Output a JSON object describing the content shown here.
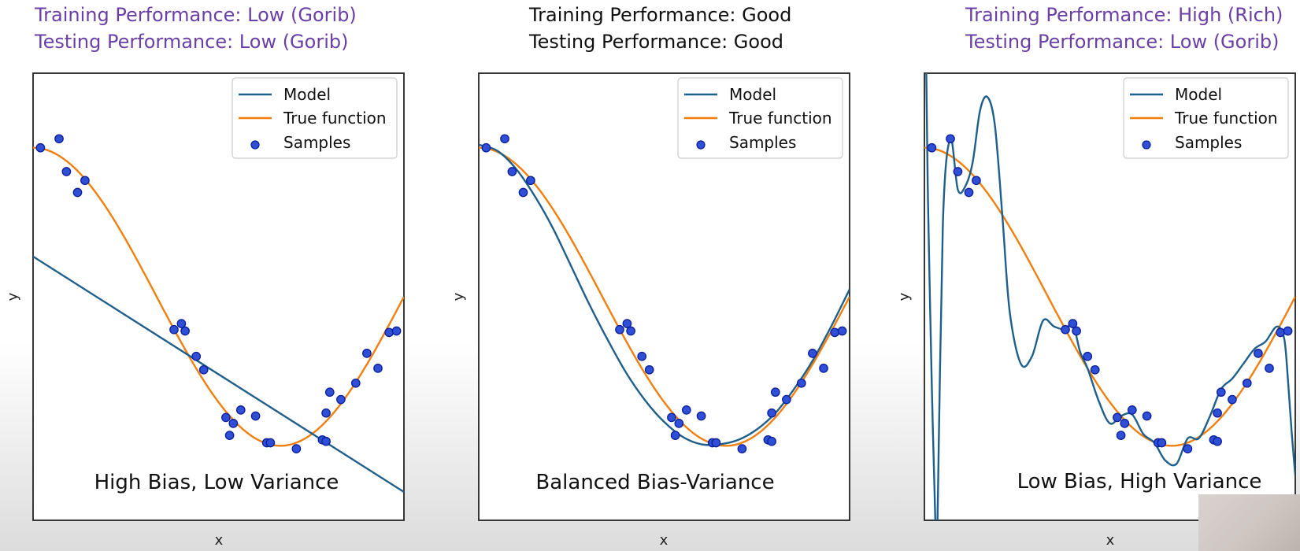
{
  "colors": {
    "model": "#1f5f8b",
    "true_function": "#f07f0e",
    "samples_fill": "#2f4fd6",
    "samples_edge": "#0b1f9a",
    "bad_caption": "#6a3fa6",
    "good_caption": "#111111",
    "frame": "#222222"
  },
  "chart_data": [
    {
      "type": "line",
      "caption_top": [
        "Training Performance: Low (Gorib)",
        "Testing Performance: Low (Gorib)"
      ],
      "caption_tone": "bad",
      "panel_caption": "High Bias, Low Variance",
      "xlabel": "x",
      "ylabel": "y",
      "legend": {
        "placement": "top-right",
        "entries": [
          "Model",
          "True function",
          "Samples"
        ]
      },
      "xlim": [
        0,
        1
      ],
      "ylim": [
        -1.5,
        1.5
      ],
      "grid": false,
      "true_function": "cos(1.5*pi*x)",
      "model": {
        "kind": "linear",
        "x": [
          0,
          1
        ],
        "y": [
          0.27,
          -1.31
        ]
      },
      "samples": {
        "x": [
          0.02,
          0.07,
          0.09,
          0.12,
          0.14,
          0.38,
          0.4,
          0.41,
          0.44,
          0.46,
          0.52,
          0.53,
          0.54,
          0.56,
          0.6,
          0.63,
          0.64,
          0.71,
          0.78,
          0.79,
          0.79,
          0.8,
          0.83,
          0.87,
          0.9,
          0.93,
          0.96,
          0.98
        ],
        "y": [
          1.0,
          1.06,
          0.84,
          0.7,
          0.78,
          -0.22,
          -0.18,
          -0.23,
          -0.4,
          -0.49,
          -0.81,
          -0.93,
          -0.85,
          -0.76,
          -0.8,
          -0.98,
          -0.98,
          -1.02,
          -0.96,
          -0.97,
          -0.78,
          -0.64,
          -0.69,
          -0.58,
          -0.38,
          -0.48,
          -0.24,
          -0.23
        ]
      }
    },
    {
      "type": "line",
      "caption_top": [
        "Training Performance: Good",
        "Testing Performance: Good"
      ],
      "caption_tone": "good",
      "panel_caption": "Balanced Bias-Variance",
      "xlabel": "x",
      "ylabel": "y",
      "legend": {
        "placement": "top-right",
        "entries": [
          "Model",
          "True function",
          "Samples"
        ]
      },
      "xlim": [
        0,
        1
      ],
      "ylim": [
        -1.5,
        1.5
      ],
      "grid": false,
      "true_function": "cos(1.5*pi*x)",
      "model": {
        "kind": "curve",
        "x": [
          0,
          0.05,
          0.1,
          0.15,
          0.2,
          0.25,
          0.3,
          0.35,
          0.4,
          0.45,
          0.5,
          0.55,
          0.6,
          0.65,
          0.7,
          0.75,
          0.8,
          0.85,
          0.9,
          0.95,
          1.0
        ],
        "y": [
          1.02,
          0.98,
          0.86,
          0.68,
          0.46,
          0.2,
          -0.06,
          -0.3,
          -0.52,
          -0.7,
          -0.84,
          -0.94,
          -0.99,
          -0.99,
          -0.96,
          -0.89,
          -0.78,
          -0.62,
          -0.43,
          -0.2,
          0.05
        ]
      },
      "samples": {
        "x": [
          0.02,
          0.07,
          0.09,
          0.12,
          0.14,
          0.38,
          0.4,
          0.41,
          0.44,
          0.46,
          0.52,
          0.53,
          0.54,
          0.56,
          0.6,
          0.63,
          0.64,
          0.71,
          0.78,
          0.79,
          0.79,
          0.8,
          0.83,
          0.87,
          0.9,
          0.93,
          0.96,
          0.98
        ],
        "y": [
          1.0,
          1.06,
          0.84,
          0.7,
          0.78,
          -0.22,
          -0.18,
          -0.23,
          -0.4,
          -0.49,
          -0.81,
          -0.93,
          -0.85,
          -0.76,
          -0.8,
          -0.98,
          -0.98,
          -1.02,
          -0.96,
          -0.97,
          -0.78,
          -0.64,
          -0.69,
          -0.58,
          -0.38,
          -0.48,
          -0.24,
          -0.23
        ]
      }
    },
    {
      "type": "line",
      "caption_top": [
        "Training Performance: High (Rich)",
        "Testing Performance: Low (Gorib)"
      ],
      "caption_tone": "bad",
      "panel_caption": "Low Bias, High Variance",
      "xlabel": "x",
      "ylabel": "y",
      "legend": {
        "placement": "top-right",
        "entries": [
          "Model",
          "True function",
          "Samples"
        ]
      },
      "xlim": [
        0,
        1
      ],
      "ylim": [
        -1.5,
        1.5
      ],
      "grid": false,
      "true_function": "cos(1.5*pi*x)",
      "model": {
        "kind": "curve",
        "x": [
          0.005,
          0.01,
          0.02,
          0.03,
          0.035,
          0.05,
          0.07,
          0.09,
          0.11,
          0.13,
          0.15,
          0.17,
          0.19,
          0.21,
          0.23,
          0.26,
          0.29,
          0.32,
          0.35,
          0.38,
          0.4,
          0.42,
          0.44,
          0.47,
          0.5,
          0.53,
          0.56,
          0.59,
          0.62,
          0.65,
          0.68,
          0.71,
          0.74,
          0.77,
          0.8,
          0.83,
          0.86,
          0.89,
          0.92,
          0.95,
          0.97,
          0.98,
          0.99,
          1.0
        ],
        "y": [
          1.5,
          0.6,
          -0.6,
          -1.55,
          -1.55,
          0.5,
          1.06,
          0.72,
          0.74,
          0.9,
          1.25,
          1.34,
          1.15,
          0.55,
          -0.1,
          -0.45,
          -0.4,
          -0.16,
          -0.2,
          -0.22,
          -0.18,
          -0.37,
          -0.48,
          -0.7,
          -0.85,
          -0.8,
          -0.79,
          -0.92,
          -0.98,
          -1.1,
          -1.12,
          -0.95,
          -0.95,
          -0.8,
          -0.62,
          -0.55,
          -0.45,
          -0.35,
          -0.3,
          -0.2,
          -0.28,
          -0.55,
          -0.9,
          -1.2
        ]
      },
      "samples": {
        "x": [
          0.02,
          0.07,
          0.09,
          0.12,
          0.14,
          0.38,
          0.4,
          0.41,
          0.44,
          0.46,
          0.52,
          0.53,
          0.54,
          0.56,
          0.6,
          0.63,
          0.64,
          0.71,
          0.78,
          0.79,
          0.79,
          0.8,
          0.83,
          0.87,
          0.9,
          0.93,
          0.96,
          0.98
        ],
        "y": [
          1.0,
          1.06,
          0.84,
          0.7,
          0.78,
          -0.22,
          -0.18,
          -0.23,
          -0.4,
          -0.49,
          -0.81,
          -0.93,
          -0.85,
          -0.76,
          -0.8,
          -0.98,
          -0.98,
          -1.02,
          -0.96,
          -0.97,
          -0.78,
          -0.64,
          -0.69,
          -0.58,
          -0.38,
          -0.48,
          -0.24,
          -0.23
        ]
      }
    }
  ]
}
